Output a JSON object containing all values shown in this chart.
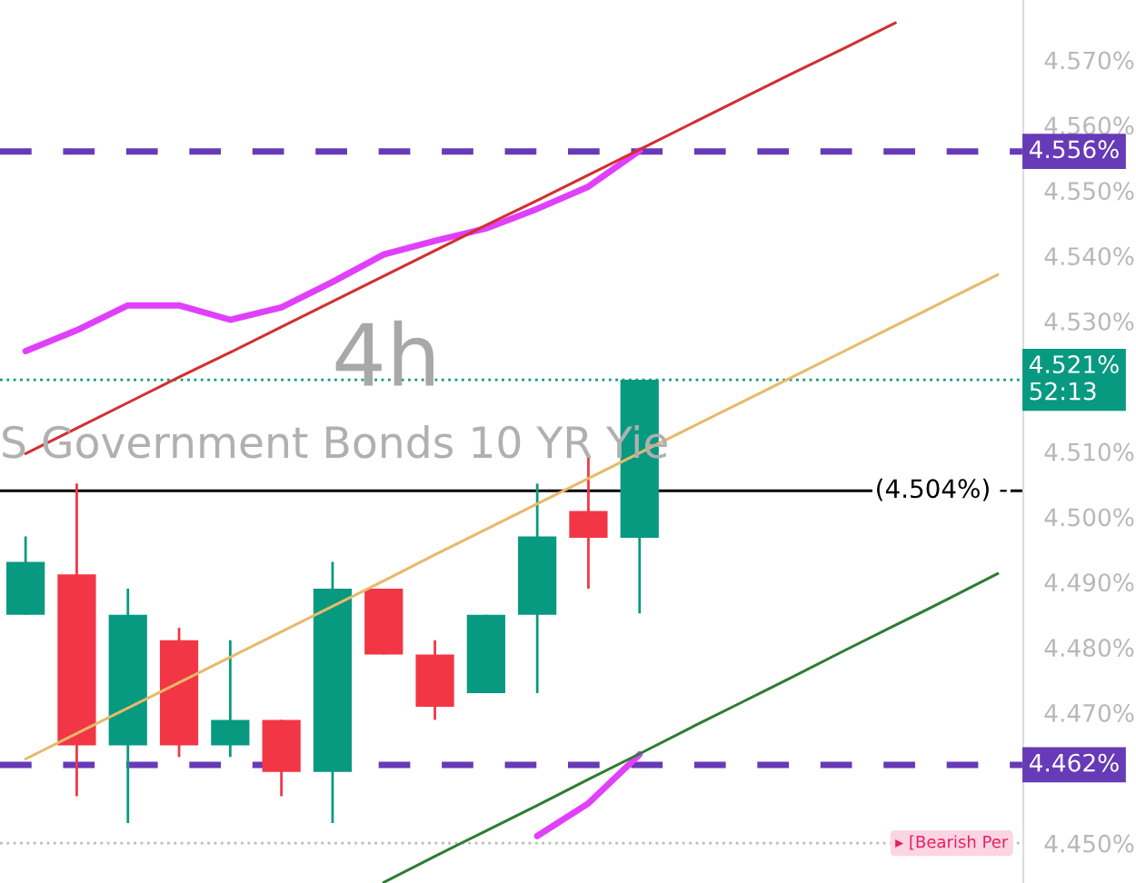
{
  "chart_data": {
    "type": "candlestick",
    "title": "4h",
    "subtitle": "S Government Bonds 10 YR Yie",
    "categories": [
      null,
      null,
      null,
      null,
      null,
      null,
      null,
      null,
      null,
      null,
      null,
      null,
      null,
      null,
      null,
      null,
      null,
      null,
      null,
      null
    ],
    "ohlc": [
      [
        4.485,
        4.497,
        4.485,
        4.4931
      ],
      [
        4.4912,
        4.5051,
        4.4572,
        4.465
      ],
      [
        4.465,
        4.489,
        4.4531,
        4.485
      ],
      [
        4.4811,
        4.483,
        4.4632,
        4.465
      ],
      [
        4.465,
        4.4811,
        4.4632,
        4.4689
      ],
      [
        4.4689,
        4.4689,
        4.4572,
        4.4609
      ],
      [
        4.4609,
        4.4931,
        4.4531,
        4.489
      ],
      [
        4.489,
        4.489,
        4.4789,
        4.4789
      ],
      [
        4.4789,
        4.4811,
        4.4689,
        4.4709
      ],
      [
        4.473,
        4.485,
        4.473,
        4.485
      ],
      [
        4.485,
        4.5051,
        4.473,
        4.497
      ],
      [
        4.5009,
        4.5091,
        4.489,
        4.4968
      ],
      [
        4.4968,
        4.521,
        4.4852,
        4.521
      ],
      null,
      null,
      null,
      null,
      null,
      null,
      null
    ],
    "colors": [
      "#089981",
      "#f23645",
      "#089981",
      "#f23645",
      "#089981",
      "#f23645",
      "#089981",
      "#f23645",
      "#f23645",
      "#089981",
      "#089981",
      "#f23645",
      "#089981",
      null,
      null,
      null,
      null,
      null,
      null,
      null
    ],
    "series": [
      {
        "type": "line",
        "color": "#d32f2f",
        "values": [
          4.5097,
          4.5136,
          4.5175,
          4.5214,
          4.5252,
          4.5291,
          4.533,
          4.5369,
          4.5408,
          4.5447,
          4.5485,
          4.5524,
          4.5563,
          4.5602,
          4.5641,
          4.568,
          4.5718,
          4.5757,
          null,
          null
        ]
      },
      {
        "type": "line",
        "color": "#e8b96a",
        "values": [
          4.4629,
          4.4668,
          4.4707,
          4.4746,
          4.4785,
          4.4824,
          4.4863,
          4.4902,
          4.4942,
          4.4981,
          4.502,
          4.5059,
          4.5098,
          4.5137,
          4.5176,
          4.5215,
          4.5254,
          4.5293,
          4.5332,
          4.5371
        ]
      },
      {
        "type": "line",
        "color": "#2e7d32",
        "values": [
          null,
          null,
          null,
          null,
          null,
          null,
          null,
          4.444,
          4.448,
          4.4519,
          4.4558,
          4.4598,
          4.4637,
          4.4677,
          4.4716,
          4.4755,
          4.4795,
          4.4834,
          4.4873,
          4.4913
        ]
      },
      {
        "type": "line",
        "color": "#e040fb",
        "values": [
          4.5254,
          4.5286,
          4.5324,
          4.5324,
          4.5302,
          4.5321,
          4.536,
          4.5402,
          4.5423,
          4.5442,
          4.5472,
          4.5506,
          4.5561,
          null,
          null,
          null,
          null,
          null,
          null,
          null
        ]
      },
      {
        "type": "line",
        "color": "#e040fb",
        "values": [
          null,
          null,
          null,
          null,
          null,
          null,
          null,
          null,
          null,
          null,
          4.4511,
          4.4561,
          4.4636,
          null,
          null,
          null,
          null,
          null,
          null,
          null
        ]
      }
    ],
    "ref_lines": [
      {
        "axis": "y",
        "value": 4.556,
        "label": "4.556%",
        "color": "#673ab7",
        "line_style": "dashed"
      },
      {
        "axis": "y",
        "value": 4.462,
        "label": "4.462%",
        "color": "#673ab7",
        "line_style": "dashed"
      },
      {
        "axis": "y",
        "value": 4.521,
        "label": "4.521%\n52:13",
        "color": "#089981",
        "line_style": "dotted"
      },
      {
        "axis": "y",
        "value": 4.504,
        "label": "(4.504%) -",
        "color": "#000000",
        "line_style": "solid"
      },
      {
        "axis": "y",
        "value": 4.45,
        "color": "#bbbbbb",
        "line_style": "dotted"
      }
    ],
    "annotations": [
      {
        "text": "▸ [Bearish Per",
        "y": 4.45
      }
    ],
    "ylim": [
      4.4439,
      4.5792
    ],
    "yticks": [
      {
        "value": 4.45,
        "label": "4.450%"
      },
      {
        "value": 4.47,
        "label": "4.470%"
      },
      {
        "value": 4.48,
        "label": "4.480%"
      },
      {
        "value": 4.49,
        "label": "4.490%"
      },
      {
        "value": 4.5,
        "label": "4.500%"
      },
      {
        "value": 4.51,
        "label": "4.510%"
      },
      {
        "value": 4.53,
        "label": "4.530%"
      },
      {
        "value": 4.54,
        "label": "4.540%"
      },
      {
        "value": 4.55,
        "label": "4.550%"
      },
      {
        "value": 4.56,
        "label": "4.560%"
      },
      {
        "value": 4.57,
        "label": "4.570%"
      }
    ],
    "tick_labels": "y"
  }
}
